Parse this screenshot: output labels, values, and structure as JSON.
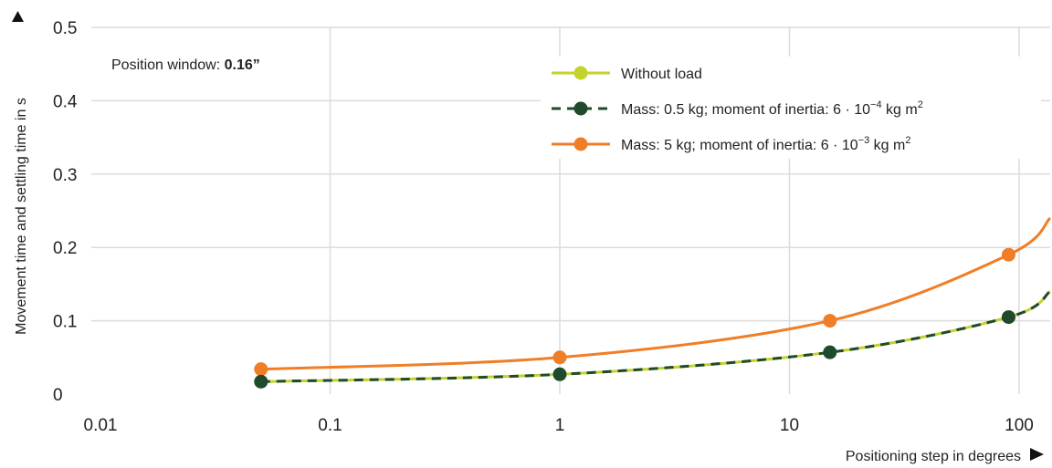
{
  "chart_data": {
    "type": "line",
    "x_scale": "log",
    "xlim": [
      0.01,
      150
    ],
    "ylim": [
      0,
      0.5
    ],
    "x_ticks": [
      0.01,
      0.1,
      1,
      10,
      100
    ],
    "x_tick_labels": [
      "0.01",
      "0.1",
      "1",
      "10",
      "100"
    ],
    "y_ticks": [
      0,
      0.1,
      0.2,
      0.3,
      0.4,
      0.5
    ],
    "y_tick_labels": [
      "0",
      "0.1",
      "0.2",
      "0.3",
      "0.4",
      "0.5"
    ],
    "xlabel": "Positioning step in degrees",
    "ylabel": "Movement time and settling time in s",
    "grid": true,
    "legend_position": "top-right",
    "annotation": {
      "prefix": "Position window: ",
      "value": "0.16”"
    },
    "series": [
      {
        "name": "Without load",
        "color": "#c2d32e",
        "style": "solid",
        "x": [
          0.05,
          1,
          15,
          90,
          150
        ],
        "y": [
          0.017,
          0.027,
          0.057,
          0.105,
          0.14
        ]
      },
      {
        "name": "Mass: 0.5 kg; moment of inertia: 6 · 10⁻⁴ kg m²",
        "color": "#1f4a2b",
        "style": "dashed",
        "x": [
          0.05,
          1,
          15,
          90,
          150
        ],
        "y": [
          0.017,
          0.027,
          0.057,
          0.105,
          0.14
        ]
      },
      {
        "name": "Mass: 5 kg; moment of inertia: 6 · 10⁻³ kg m²",
        "color": "#f07e26",
        "style": "solid",
        "x": [
          0.05,
          1,
          15,
          90,
          150
        ],
        "y": [
          0.034,
          0.05,
          0.1,
          0.19,
          0.24
        ]
      }
    ],
    "legend_labels": [
      {
        "text": "Without load"
      },
      {
        "base": "Mass: 0.5 kg; moment of inertia: 6 · 10",
        "exp": "−4",
        "unit": " kg m",
        "unit_exp": "2"
      },
      {
        "base": "Mass: 5 kg; moment of inertia: 6 · 10",
        "exp": "−3",
        "unit": " kg m",
        "unit_exp": "2"
      }
    ],
    "marker_x": [
      0.05,
      1,
      15,
      90
    ]
  }
}
